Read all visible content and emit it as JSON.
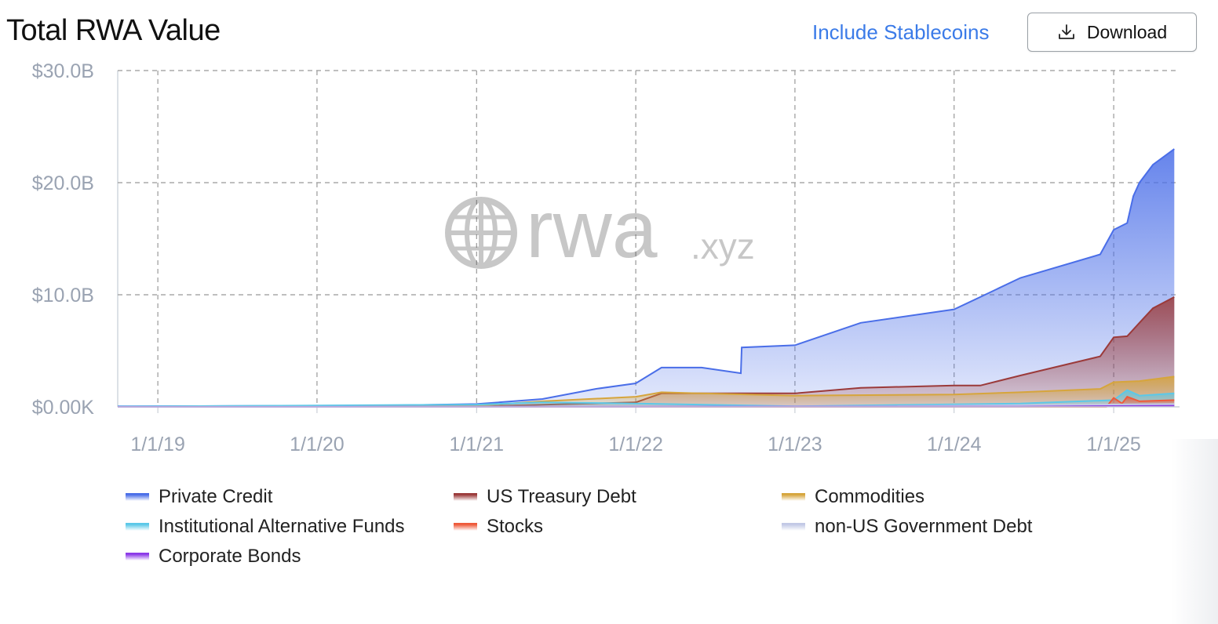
{
  "header": {
    "title": "Total RWA Value",
    "toggle_label": "Include Stablecoins",
    "download_label": "Download"
  },
  "watermark": {
    "mark": "rwa",
    "suffix": ".xyz"
  },
  "chart_data": {
    "type": "area",
    "stacked": false,
    "title": "Total RWA Value",
    "xlabel": "",
    "ylabel": "",
    "x_range": [
      "2018-10-01",
      "2025-06-01"
    ],
    "ylim": [
      0,
      30000000000
    ],
    "y_ticks": [
      {
        "value": 0,
        "label": "$0.00K"
      },
      {
        "value": 10000000000,
        "label": "$10.0B"
      },
      {
        "value": 20000000000,
        "label": "$20.0B"
      },
      {
        "value": 30000000000,
        "label": "$30.0B"
      }
    ],
    "x_ticks": [
      {
        "value": "2019-01-01",
        "label": "1/1/19"
      },
      {
        "value": "2020-01-01",
        "label": "1/1/20"
      },
      {
        "value": "2021-01-01",
        "label": "1/1/21"
      },
      {
        "value": "2022-01-01",
        "label": "1/1/22"
      },
      {
        "value": "2023-01-01",
        "label": "1/1/23"
      },
      {
        "value": "2024-01-01",
        "label": "1/1/24"
      },
      {
        "value": "2025-01-01",
        "label": "1/1/25"
      }
    ],
    "grid": true,
    "legend_position": "bottom",
    "series": [
      {
        "name": "Private Credit",
        "color": "#4a6ee8",
        "points": [
          [
            "2018-10-01",
            0.05
          ],
          [
            "2019-06-01",
            0.08
          ],
          [
            "2020-06-01",
            0.12
          ],
          [
            "2021-01-01",
            0.25
          ],
          [
            "2021-06-01",
            0.7
          ],
          [
            "2021-10-01",
            1.6
          ],
          [
            "2022-01-01",
            2.1
          ],
          [
            "2022-03-01",
            3.5
          ],
          [
            "2022-06-01",
            3.5
          ],
          [
            "2022-08-30",
            3.0
          ],
          [
            "2022-09-01",
            5.3
          ],
          [
            "2023-01-01",
            5.5
          ],
          [
            "2023-06-01",
            7.5
          ],
          [
            "2024-01-01",
            8.7
          ],
          [
            "2024-03-01",
            9.8
          ],
          [
            "2024-06-01",
            11.5
          ],
          [
            "2024-12-01",
            13.6
          ],
          [
            "2025-01-01",
            15.8
          ],
          [
            "2025-02-01",
            16.4
          ],
          [
            "2025-02-15",
            18.8
          ],
          [
            "2025-03-01",
            20.0
          ],
          [
            "2025-04-01",
            21.6
          ],
          [
            "2025-05-20",
            23.0
          ]
        ]
      },
      {
        "name": "US Treasury Debt",
        "color": "#9b3a3a",
        "points": [
          [
            "2018-10-01",
            0.0
          ],
          [
            "2021-01-01",
            0.05
          ],
          [
            "2022-01-01",
            0.4
          ],
          [
            "2022-03-01",
            1.2
          ],
          [
            "2022-06-01",
            1.2
          ],
          [
            "2023-01-01",
            1.2
          ],
          [
            "2023-06-01",
            1.7
          ],
          [
            "2024-01-01",
            1.9
          ],
          [
            "2024-03-01",
            1.9
          ],
          [
            "2024-06-01",
            2.8
          ],
          [
            "2024-12-01",
            4.5
          ],
          [
            "2025-01-01",
            6.2
          ],
          [
            "2025-02-01",
            6.3
          ],
          [
            "2025-03-01",
            7.5
          ],
          [
            "2025-04-01",
            8.8
          ],
          [
            "2025-05-20",
            9.8
          ]
        ]
      },
      {
        "name": "Commodities",
        "color": "#d6a53c",
        "points": [
          [
            "2018-10-01",
            0.0
          ],
          [
            "2021-01-01",
            0.1
          ],
          [
            "2021-06-01",
            0.5
          ],
          [
            "2022-01-01",
            0.9
          ],
          [
            "2022-03-01",
            1.3
          ],
          [
            "2022-06-01",
            1.2
          ],
          [
            "2023-01-01",
            1.0
          ],
          [
            "2024-01-01",
            1.1
          ],
          [
            "2024-06-01",
            1.3
          ],
          [
            "2024-12-01",
            1.6
          ],
          [
            "2025-01-01",
            2.2
          ],
          [
            "2025-03-01",
            2.3
          ],
          [
            "2025-05-20",
            2.7
          ]
        ]
      },
      {
        "name": "Institutional Alternative Funds",
        "color": "#5bc8e8",
        "points": [
          [
            "2018-10-01",
            0.03
          ],
          [
            "2021-01-01",
            0.2
          ],
          [
            "2021-06-01",
            0.4
          ],
          [
            "2022-01-01",
            0.3
          ],
          [
            "2023-01-01",
            0.05
          ],
          [
            "2024-06-01",
            0.3
          ],
          [
            "2025-01-01",
            0.6
          ],
          [
            "2025-02-01",
            1.5
          ],
          [
            "2025-03-01",
            1.0
          ],
          [
            "2025-05-20",
            1.2
          ]
        ]
      },
      {
        "name": "Stocks",
        "color": "#ee5a3a",
        "points": [
          [
            "2018-10-01",
            0.0
          ],
          [
            "2024-12-15",
            0.0
          ],
          [
            "2025-01-01",
            0.8
          ],
          [
            "2025-01-20",
            0.3
          ],
          [
            "2025-02-01",
            0.9
          ],
          [
            "2025-03-01",
            0.5
          ],
          [
            "2025-05-20",
            0.6
          ]
        ]
      },
      {
        "name": "non-US Government Debt",
        "color": "#c2c9e6",
        "points": [
          [
            "2018-10-01",
            0.0
          ],
          [
            "2023-06-01",
            0.05
          ],
          [
            "2025-05-20",
            0.25
          ]
        ]
      },
      {
        "name": "Corporate Bonds",
        "color": "#8c3ae8",
        "points": [
          [
            "2018-10-01",
            0.0
          ],
          [
            "2024-06-01",
            0.02
          ],
          [
            "2025-05-20",
            0.1
          ]
        ]
      }
    ],
    "value_unit": "USD billions"
  },
  "legend": [
    {
      "name": "Private Credit",
      "color": "#4a6ee8"
    },
    {
      "name": "US Treasury Debt",
      "color": "#9b3a3a"
    },
    {
      "name": "Commodities",
      "color": "#d6a53c"
    },
    {
      "name": "Institutional Alternative Funds",
      "color": "#5bc8e8"
    },
    {
      "name": "Stocks",
      "color": "#ee5a3a"
    },
    {
      "name": "non-US Government Debt",
      "color": "#c2c9e6"
    },
    {
      "name": "Corporate Bonds",
      "color": "#8c3ae8"
    }
  ]
}
